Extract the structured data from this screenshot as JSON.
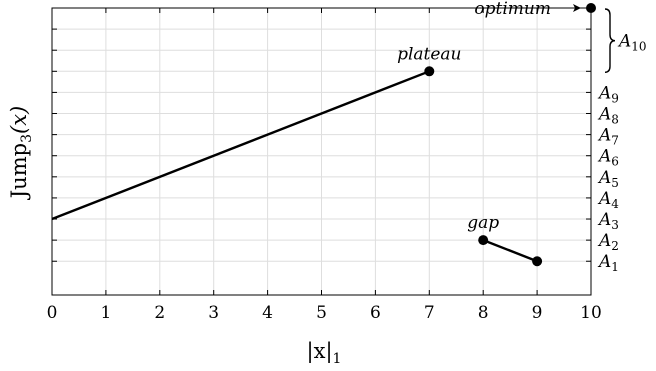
{
  "chart_data": {
    "type": "line",
    "title": "",
    "xlabel": "|x|",
    "xlabel_sub": "1",
    "ylabel": "Jump",
    "ylabel_sub": "3",
    "ylabel_suffix": "(x)",
    "xlim": [
      0,
      10
    ],
    "ylim": [
      -0.6,
      13
    ],
    "x_ticks": [
      "0",
      "1",
      "2",
      "3",
      "4",
      "5",
      "6",
      "7",
      "8",
      "9",
      "10"
    ],
    "grid": true,
    "series": [
      {
        "x": [
          0,
          7
        ],
        "y": [
          3,
          10
        ],
        "marker_points": [
          [
            7,
            10
          ]
        ]
      },
      {
        "x": [
          8,
          9
        ],
        "y": [
          2,
          1
        ],
        "marker_points": [
          [
            8,
            2
          ],
          [
            9,
            1
          ]
        ]
      },
      {
        "x": [
          10
        ],
        "y": [
          13
        ],
        "marker_points": [
          [
            10,
            13
          ]
        ]
      }
    ],
    "annotations": [
      {
        "text": "plateau",
        "x": 7,
        "y": 10
      },
      {
        "text": "gap",
        "x": 8,
        "y": 2
      },
      {
        "text": "optimum",
        "x": 10,
        "y": 13,
        "arrow": true
      }
    ],
    "level_labels": [
      {
        "letter": "A",
        "sub": "1",
        "y": 1
      },
      {
        "letter": "A",
        "sub": "2",
        "y": 2
      },
      {
        "letter": "A",
        "sub": "3",
        "y": 3
      },
      {
        "letter": "A",
        "sub": "4",
        "y": 4
      },
      {
        "letter": "A",
        "sub": "5",
        "y": 5
      },
      {
        "letter": "A",
        "sub": "6",
        "y": 6
      },
      {
        "letter": "A",
        "sub": "7",
        "y": 7
      },
      {
        "letter": "A",
        "sub": "8",
        "y": 8
      },
      {
        "letter": "A",
        "sub": "9",
        "y": 9
      }
    ],
    "brace_label": {
      "letter": "A",
      "sub": "10",
      "y_range": [
        10,
        13
      ]
    }
  }
}
